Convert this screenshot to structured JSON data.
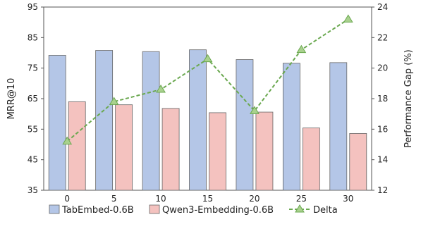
{
  "chart_data": {
    "type": "bar",
    "categories": [
      "0",
      "5",
      "10",
      "15",
      "20",
      "25",
      "30"
    ],
    "series": [
      {
        "name": "TabEmbed-0.6B",
        "axis": "left",
        "kind": "bar",
        "color": "#b4c6e7",
        "values": [
          79.2,
          80.8,
          80.4,
          81.0,
          77.8,
          76.6,
          76.8
        ]
      },
      {
        "name": "Qwen3-Embedding-0.6B",
        "axis": "left",
        "kind": "bar",
        "color": "#f4c2bf",
        "values": [
          64.0,
          63.0,
          61.8,
          60.4,
          60.6,
          55.4,
          53.6
        ]
      },
      {
        "name": "Delta",
        "axis": "right",
        "kind": "line",
        "color": "#6aa84f",
        "values": [
          15.2,
          17.8,
          18.6,
          20.6,
          17.2,
          21.2,
          23.2
        ]
      }
    ],
    "ylabel": "MRR@10",
    "y2label": "Performance Gap (%)",
    "ylim": [
      35,
      95
    ],
    "y2lim": [
      12,
      24
    ],
    "yticks": [
      35,
      45,
      55,
      65,
      75,
      85,
      95
    ],
    "y2ticks": [
      12,
      14,
      16,
      18,
      20,
      22,
      24
    ],
    "grid": false,
    "legend_position": "bottom"
  }
}
